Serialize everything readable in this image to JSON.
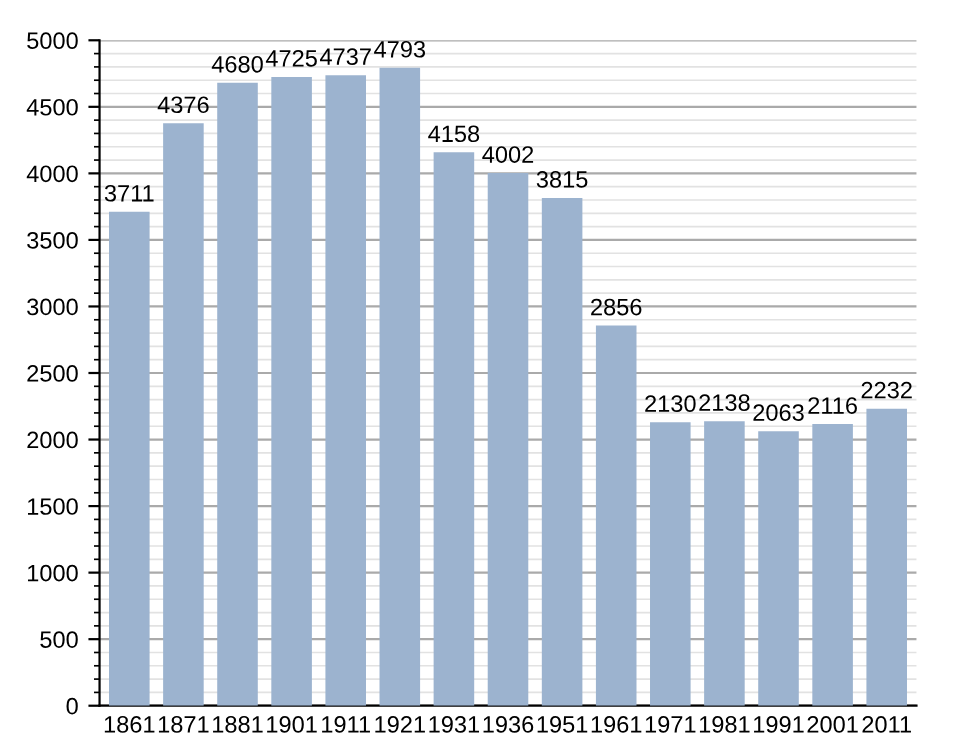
{
  "chart_data": {
    "type": "bar",
    "categories": [
      "1861",
      "1871",
      "1881",
      "1901",
      "1911",
      "1921",
      "1931",
      "1936",
      "1951",
      "1961",
      "1971",
      "1981",
      "1991",
      "2001",
      "2011"
    ],
    "values": [
      3711,
      4376,
      4680,
      4725,
      4737,
      4793,
      4158,
      4002,
      3815,
      2856,
      2130,
      2138,
      2063,
      2116,
      2232
    ],
    "color": "#9cb3cf",
    "ylim": [
      0,
      5000
    ],
    "yticks": [
      0,
      500,
      1000,
      1500,
      2000,
      2500,
      3000,
      3500,
      4000,
      4500,
      5000
    ],
    "grid": "y",
    "data_labels": true
  }
}
